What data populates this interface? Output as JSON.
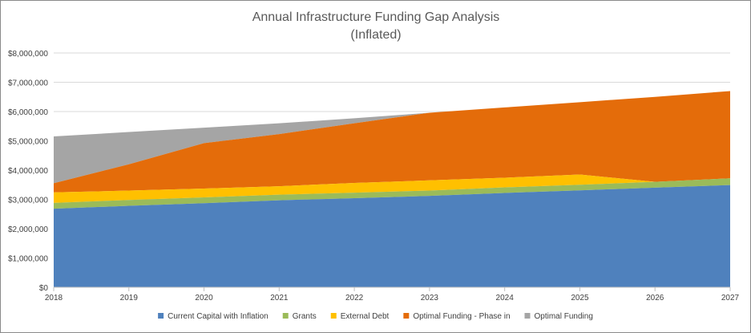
{
  "chart_data": {
    "type": "area",
    "title": [
      "Annual Infrastructure Funding Gap Analysis",
      "(Inflated)"
    ],
    "xlabel": "",
    "ylabel": "",
    "x": [
      "2018",
      "2019",
      "2020",
      "2021",
      "2022",
      "2023",
      "2024",
      "2025",
      "2026",
      "2027"
    ],
    "ylim": [
      0,
      8000000
    ],
    "y_ticks": [
      {
        "value": 0,
        "label": "$0"
      },
      {
        "value": 1000000,
        "label": "$1,000,000"
      },
      {
        "value": 2000000,
        "label": "$2,000,000"
      },
      {
        "value": 3000000,
        "label": "$3,000,000"
      },
      {
        "value": 4000000,
        "label": "$4,000,000"
      },
      {
        "value": 5000000,
        "label": "$5,000,000"
      },
      {
        "value": 6000000,
        "label": "$6,000,000"
      },
      {
        "value": 7000000,
        "label": "$7,000,000"
      },
      {
        "value": 8000000,
        "label": "$8,000,000"
      }
    ],
    "grid": true,
    "legend_position": "bottom",
    "stacking": "cumulative",
    "series": [
      {
        "name": "Current Capital with Inflation",
        "color": "#4f81bd",
        "values": [
          2680000,
          2780000,
          2870000,
          2970000,
          3040000,
          3120000,
          3220000,
          3310000,
          3400000,
          3490000
        ]
      },
      {
        "name": "Grants",
        "color": "#9bbb59",
        "values": [
          2880000,
          2980000,
          3070000,
          3160000,
          3230000,
          3300000,
          3410000,
          3500000,
          3600000,
          3720000
        ]
      },
      {
        "name": "External Debt",
        "color": "#ffc000",
        "values": [
          3240000,
          3300000,
          3370000,
          3450000,
          3560000,
          3650000,
          3740000,
          3850000,
          3600000,
          3720000
        ]
      },
      {
        "name": "Optimal Funding - Phase in",
        "color": "#e46c0a",
        "values": [
          3550000,
          4200000,
          4920000,
          5230000,
          5600000,
          5960000,
          6140000,
          6320000,
          6500000,
          6700000
        ]
      },
      {
        "name": "Optimal Funding",
        "color": "#a5a5a5",
        "values": [
          5150000,
          5300000,
          5450000,
          5600000,
          5770000,
          5960000,
          6140000,
          6320000,
          6500000,
          6700000
        ]
      }
    ]
  }
}
